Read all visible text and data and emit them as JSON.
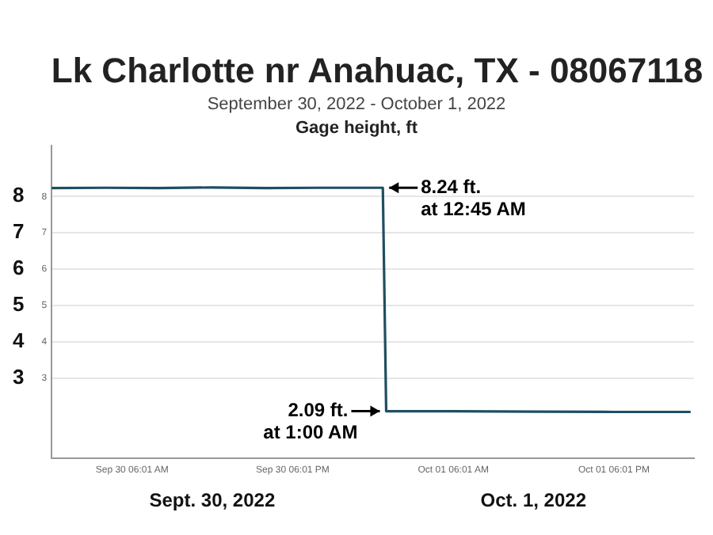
{
  "chart_data": {
    "type": "line",
    "title": "Lk Charlotte nr Anahuac, TX - 08067118",
    "subtitle": "September 30, 2022 - October 1, 2022",
    "annotations": [
      "Gage height, ft",
      {
        "text": "8.24 ft.\nat 12:45 AM",
        "x": "2022-10-01T00:45",
        "y": 8.24
      },
      {
        "text": "2.09 ft.\nat 1:00 AM",
        "x": "2022-10-01T01:00",
        "y": 2.09
      }
    ],
    "x": [
      "2022-09-30T00:00",
      "2022-09-30T04:00",
      "2022-09-30T08:00",
      "2022-09-30T12:00",
      "2022-09-30T16:00",
      "2022-09-30T20:00",
      "2022-10-01T00:45",
      "2022-10-01T01:00",
      "2022-10-01T06:00",
      "2022-10-01T12:00",
      "2022-10-01T18:00",
      "2022-10-01T23:45"
    ],
    "series": [
      {
        "color": "#1f4e63",
        "values": [
          8.23,
          8.24,
          8.23,
          8.25,
          8.23,
          8.24,
          8.24,
          2.09,
          2.09,
          2.08,
          2.07,
          2.07
        ]
      }
    ],
    "xlim": [
      "2022-09-30T00:00",
      "2022-10-02T00:00"
    ],
    "xticks": [
      {
        "value": "2022-09-30T06:01",
        "label": "Sep 30 06:01 AM"
      },
      {
        "value": "2022-09-30T18:01",
        "label": "Sep 30 06:01 PM"
      },
      {
        "value": "2022-10-01T06:01",
        "label": "Oct 01 06:01 AM"
      },
      {
        "value": "2022-10-01T18:01",
        "label": "Oct 01 06:01 PM"
      }
    ],
    "x2lim": [
      "2022-09-30T00:00",
      "2022-10-02T00:00"
    ],
    "x2ticks": [
      {
        "value": "2022-09-30T12:00",
        "label": "Sept. 30, 2022"
      },
      {
        "value": "2022-10-01T12:00",
        "label": "Oct. 1, 2022"
      }
    ],
    "ylim": [
      0.8,
      9.4
    ],
    "yticks": [
      3,
      4,
      5,
      6,
      7,
      8
    ],
    "y2lim": [
      0.8,
      9.4
    ],
    "y2ticks": [
      3,
      4,
      5,
      6,
      7,
      8
    ],
    "grid": "y",
    "legend": false,
    "marker": "none",
    "line_style": "solid"
  }
}
